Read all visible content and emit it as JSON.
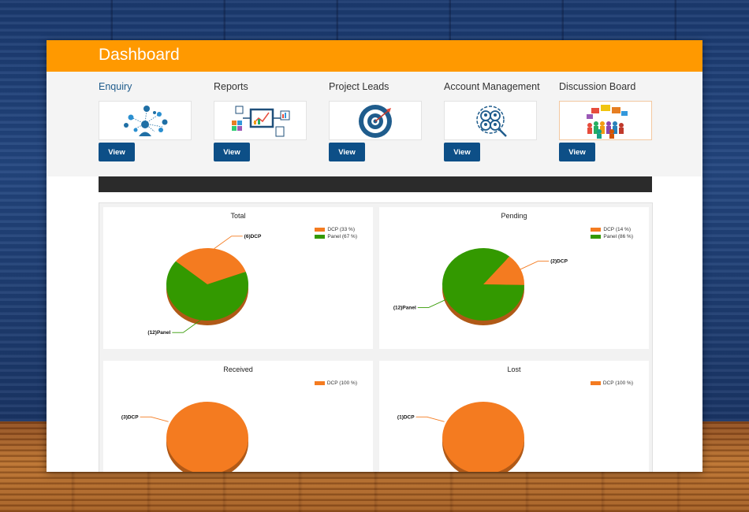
{
  "header": {
    "title": "Dashboard",
    "color": "#ff9900"
  },
  "tiles": [
    {
      "title": "Enquiry",
      "icon": "enquiry-network-icon",
      "button": "View"
    },
    {
      "title": "Reports",
      "icon": "reports-flow-icon",
      "button": "View"
    },
    {
      "title": "Project Leads",
      "icon": "target-icon",
      "button": "View"
    },
    {
      "title": "Account Management",
      "icon": "account-people-icon",
      "button": "View"
    },
    {
      "title": "Discussion Board",
      "icon": "discussion-speech-icon",
      "button": "View"
    }
  ],
  "colors": {
    "dcp": "#f47b20",
    "panel": "#339900",
    "button": "#0d4f87",
    "dark_bar": "#2b2b2b"
  },
  "chart_data": [
    {
      "type": "pie",
      "title": "Total",
      "legend": [
        "DCP (33 %)",
        "Panel (67 %)"
      ],
      "slices": [
        {
          "name": "DCP",
          "value": 6,
          "label": "(6)DCP"
        },
        {
          "name": "Panel",
          "value": 12,
          "label": "(12)Panel"
        }
      ]
    },
    {
      "type": "pie",
      "title": "Pending",
      "legend": [
        "DCP (14 %)",
        "Panel (86 %)"
      ],
      "slices": [
        {
          "name": "DCP",
          "value": 2,
          "label": "(2)DCP"
        },
        {
          "name": "Panel",
          "value": 12,
          "label": "(12)Panel"
        }
      ]
    },
    {
      "type": "pie",
      "title": "Received",
      "legend": [
        "DCP (100 %)"
      ],
      "slices": [
        {
          "name": "DCP",
          "value": 3,
          "label": "(3)DCP"
        }
      ]
    },
    {
      "type": "pie",
      "title": "Lost",
      "legend": [
        "DCP (100 %)"
      ],
      "slices": [
        {
          "name": "DCP",
          "value": 1,
          "label": "(1)DCP"
        }
      ]
    }
  ]
}
